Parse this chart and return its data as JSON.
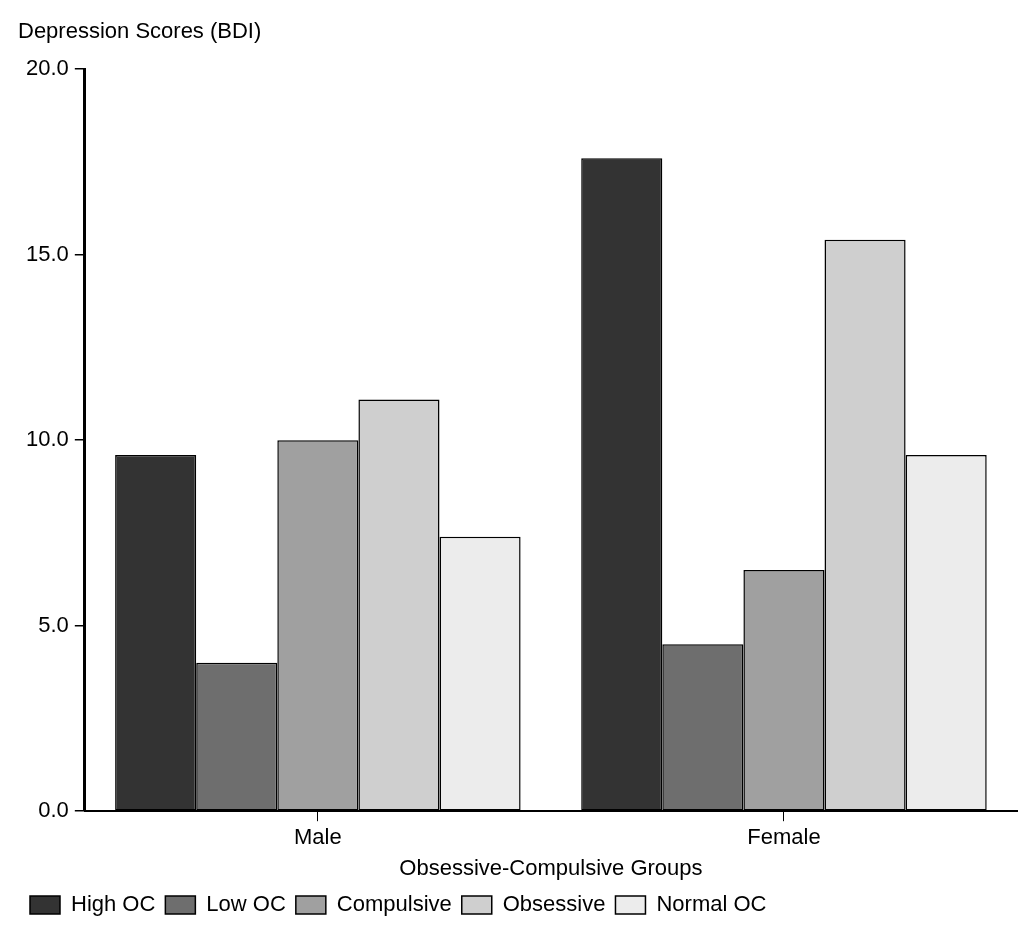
{
  "chart_data": {
    "type": "bar",
    "ylabel": "Depression Scores (BDI)",
    "xlabel": "Obsessive-Compulsive Groups",
    "categories": [
      "Male",
      "Female"
    ],
    "series": [
      {
        "name": "High OC",
        "color": "#333333",
        "values": [
          9.6,
          17.6
        ]
      },
      {
        "name": "Low OC",
        "color": "#6e6e6e",
        "values": [
          4.0,
          4.5
        ]
      },
      {
        "name": "Compulsive",
        "color": "#a0a0a0",
        "values": [
          10.0,
          6.5
        ]
      },
      {
        "name": "Obsessive",
        "color": "#cfcfcf",
        "values": [
          11.1,
          15.4
        ]
      },
      {
        "name": "Normal OC",
        "color": "#ececec",
        "values": [
          7.4,
          9.6
        ]
      }
    ],
    "ylim": [
      0,
      20
    ],
    "yticks": [
      {
        "value": 0,
        "label": "0.0"
      },
      {
        "value": 5,
        "label": "5.0"
      },
      {
        "value": 10,
        "label": "10.0"
      },
      {
        "value": 15,
        "label": "15.0"
      },
      {
        "value": 20,
        "label": "20.0"
      }
    ],
    "grid": false,
    "legend": "bottom"
  }
}
